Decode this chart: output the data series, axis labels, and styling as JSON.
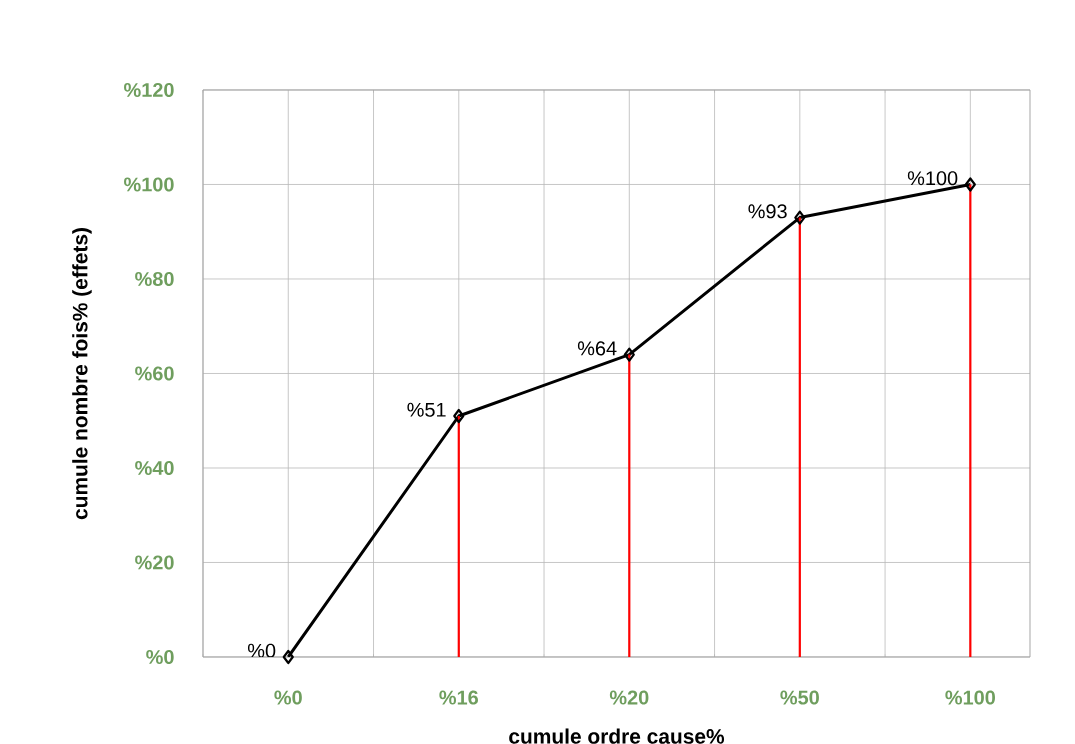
{
  "chart_data": {
    "type": "line",
    "xlabel": "cumule ordre cause%",
    "ylabel": "cumule nombre fois% (effets)",
    "categories": [
      "%0",
      "%16",
      "%20",
      "%50",
      "%100"
    ],
    "series": [
      {
        "type": "bar",
        "color": "#ff0000",
        "values": [
          0,
          51,
          64,
          93,
          100
        ]
      },
      {
        "color": "#000000",
        "values": [
          0,
          51,
          64,
          93,
          100
        ],
        "value_labels": [
          "%0",
          "%51",
          "%64",
          "%93",
          "%100"
        ]
      }
    ],
    "ylim": [
      0,
      120
    ],
    "yticks": [
      {
        "value": 0,
        "label": "%0"
      },
      {
        "value": 20,
        "label": "%20"
      },
      {
        "value": 40,
        "label": "%40"
      },
      {
        "value": 60,
        "label": "%60"
      },
      {
        "value": 80,
        "label": "%80"
      },
      {
        "value": 100,
        "label": "%100"
      },
      {
        "value": 120,
        "label": "%120"
      }
    ],
    "grid": true,
    "marker": "diamond"
  }
}
